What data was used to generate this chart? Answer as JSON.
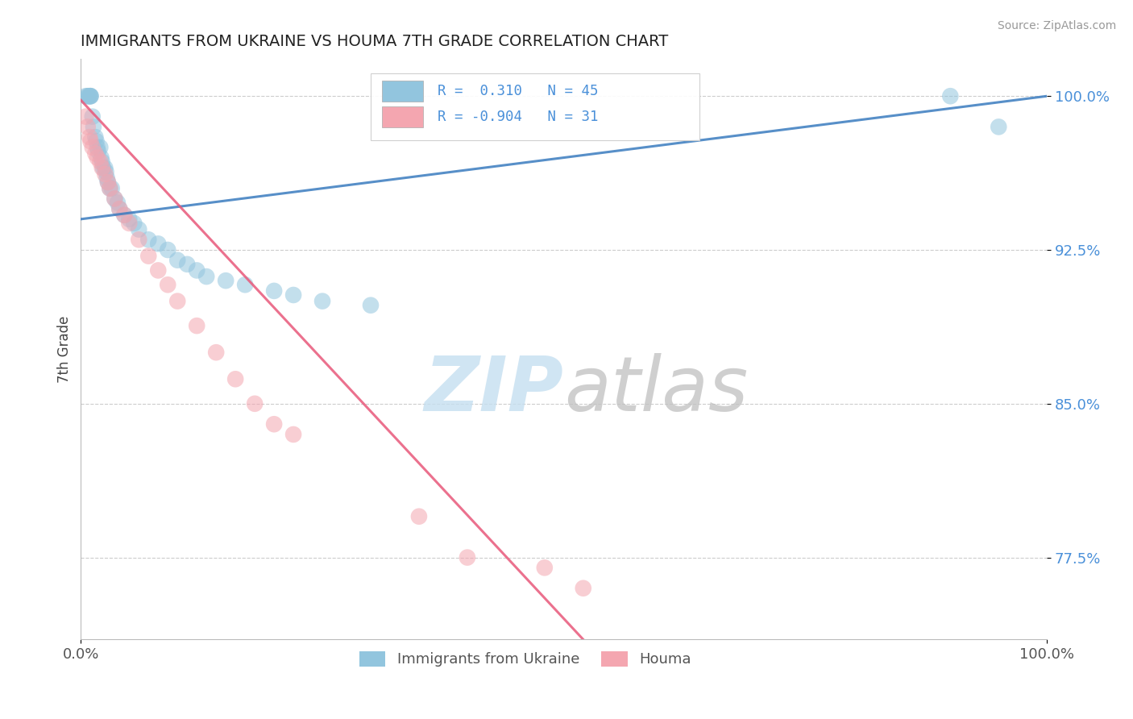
{
  "title": "IMMIGRANTS FROM UKRAINE VS HOUMA 7TH GRADE CORRELATION CHART",
  "source_text": "Source: ZipAtlas.com",
  "ylabel": "7th Grade",
  "xlim": [
    0.0,
    1.0
  ],
  "ylim": [
    0.735,
    1.018
  ],
  "x_ticks": [
    0.0,
    1.0
  ],
  "x_tick_labels": [
    "0.0%",
    "100.0%"
  ],
  "y_ticks": [
    0.775,
    0.85,
    0.925,
    1.0
  ],
  "y_tick_labels": [
    "77.5%",
    "85.0%",
    "92.5%",
    "100.0%"
  ],
  "legend_labels": [
    "Immigrants from Ukraine",
    "Houma"
  ],
  "blue_R": 0.31,
  "blue_N": 45,
  "pink_R": -0.904,
  "pink_N": 31,
  "blue_color": "#92c5de",
  "pink_color": "#f4a6b0",
  "blue_line_color": "#3a7bbf",
  "pink_line_color": "#e8587a",
  "tick_color": "#4a90d9",
  "blue_scatter_x": [
    0.005,
    0.007,
    0.008,
    0.009,
    0.01,
    0.01,
    0.01,
    0.012,
    0.013,
    0.015,
    0.016,
    0.017,
    0.018,
    0.02,
    0.021,
    0.022,
    0.023,
    0.025,
    0.026,
    0.027,
    0.028,
    0.03,
    0.032,
    0.035,
    0.038,
    0.04,
    0.045,
    0.05,
    0.055,
    0.06,
    0.07,
    0.08,
    0.09,
    0.1,
    0.11,
    0.12,
    0.13,
    0.15,
    0.17,
    0.2,
    0.22,
    0.25,
    0.3,
    0.9,
    0.95
  ],
  "blue_scatter_y": [
    1.0,
    1.0,
    1.0,
    1.0,
    1.0,
    1.0,
    1.0,
    0.99,
    0.985,
    0.98,
    0.978,
    0.975,
    0.973,
    0.975,
    0.97,
    0.968,
    0.965,
    0.965,
    0.963,
    0.96,
    0.958,
    0.955,
    0.955,
    0.95,
    0.948,
    0.945,
    0.942,
    0.94,
    0.938,
    0.935,
    0.93,
    0.928,
    0.925,
    0.92,
    0.918,
    0.915,
    0.912,
    0.91,
    0.908,
    0.905,
    0.903,
    0.9,
    0.898,
    1.0,
    0.985
  ],
  "pink_scatter_x": [
    0.005,
    0.007,
    0.009,
    0.01,
    0.012,
    0.015,
    0.017,
    0.02,
    0.022,
    0.025,
    0.028,
    0.03,
    0.035,
    0.04,
    0.045,
    0.05,
    0.06,
    0.07,
    0.08,
    0.09,
    0.1,
    0.12,
    0.14,
    0.16,
    0.18,
    0.2,
    0.22,
    0.35,
    0.4,
    0.48,
    0.52
  ],
  "pink_scatter_y": [
    0.99,
    0.985,
    0.98,
    0.978,
    0.975,
    0.972,
    0.97,
    0.968,
    0.965,
    0.962,
    0.958,
    0.955,
    0.95,
    0.945,
    0.942,
    0.938,
    0.93,
    0.922,
    0.915,
    0.908,
    0.9,
    0.888,
    0.875,
    0.862,
    0.85,
    0.84,
    0.835,
    0.795,
    0.775,
    0.77,
    0.76
  ],
  "blue_line_x0": 0.0,
  "blue_line_x1": 1.0,
  "blue_line_y0": 0.94,
  "blue_line_y1": 1.0,
  "pink_line_x0": 0.0,
  "pink_line_x1": 0.52,
  "pink_line_y0": 0.998,
  "pink_line_y1": 0.735
}
